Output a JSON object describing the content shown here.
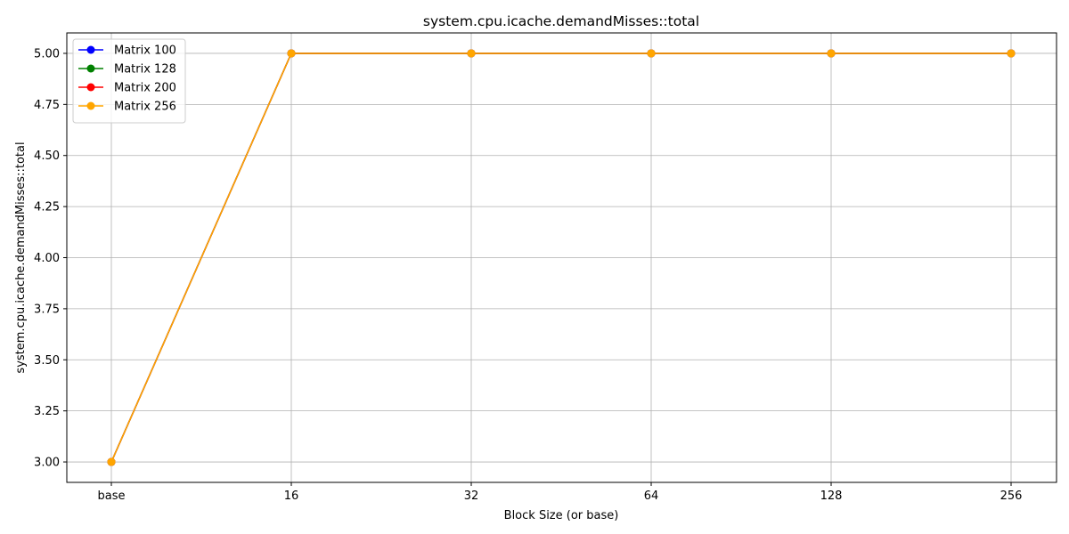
{
  "chart_data": {
    "type": "line",
    "title": "system.cpu.icache.demandMisses::total",
    "xlabel": "Block Size (or base)",
    "ylabel": "system.cpu.icache.demandMisses::total",
    "categories": [
      "base",
      "16",
      "32",
      "64",
      "128",
      "256"
    ],
    "ylim": [
      2.9,
      5.1
    ],
    "yticks": [
      3.0,
      3.25,
      3.5,
      3.75,
      4.0,
      4.25,
      4.5,
      4.75,
      5.0
    ],
    "ytick_labels": [
      "3.00",
      "3.25",
      "3.50",
      "3.75",
      "4.00",
      "4.25",
      "4.50",
      "4.75",
      "5.00"
    ],
    "grid": true,
    "legend_position": "top-left",
    "series": [
      {
        "name": "Matrix 100",
        "color": "#0000ff",
        "values": [
          3,
          5,
          5,
          5,
          5,
          5
        ]
      },
      {
        "name": "Matrix 128",
        "color": "#008000",
        "values": [
          3,
          5,
          5,
          5,
          5,
          5
        ]
      },
      {
        "name": "Matrix 200",
        "color": "#ff0000",
        "values": [
          3,
          5,
          5,
          5,
          5,
          5
        ]
      },
      {
        "name": "Matrix 256",
        "color": "#ffa500",
        "values": [
          3,
          5,
          5,
          5,
          5,
          5
        ]
      }
    ]
  }
}
